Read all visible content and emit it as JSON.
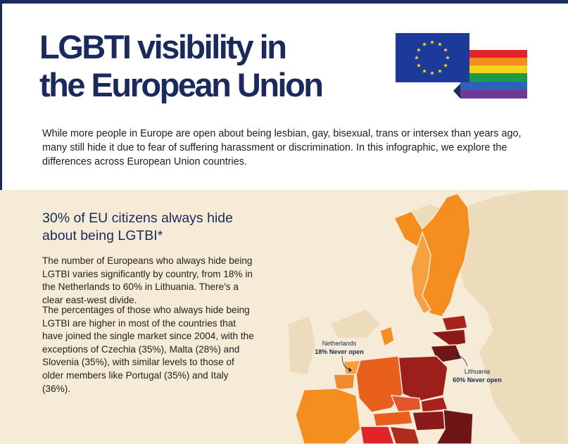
{
  "header": {
    "title_line1": "LGBTI visibility in",
    "title_line2": "the European Union",
    "intro": "While more people in Europe are open about being lesbian, gay, bisexual, trans or intersex than years ago, many still hide it due to fear of suffering harassment or discrimination. In this infographic, we explore the differences across European Union countries."
  },
  "section": {
    "title": "30% of EU citizens always hide about being LGTBI*",
    "paragraph1": "The number of Europeans who always hide being LGTBI varies significantly by country, from 18% in the Netherlands to 60% in Lithuania. There's a clear east-west divide.",
    "paragraph2": "The percentages of those who always hide being LGTBI are higher in most of the countries that have joined the single market since 2004, with the exceptions of Czechia (35%), Malta (28%) and Slovenia (35%), with similar levels to those of older members like Portugal (35%) and Italy (36%)."
  },
  "callouts": {
    "netherlands_name": "Netherlands",
    "netherlands_value": "18% Never open",
    "lithuania_name": "Lithuania",
    "lithuania_value": "60% Never open"
  },
  "colors": {
    "navy": "#1a2a5e",
    "background_section": "#f5ebd6",
    "low": "#f68d1f",
    "mid": "#e8601c",
    "high": "#c43a1a",
    "very_high": "#8b1a1a",
    "highest": "#6e1515"
  },
  "icons": {
    "eu_flag": "eu-flag-icon",
    "rainbow_flag": "rainbow-flag-icon"
  }
}
